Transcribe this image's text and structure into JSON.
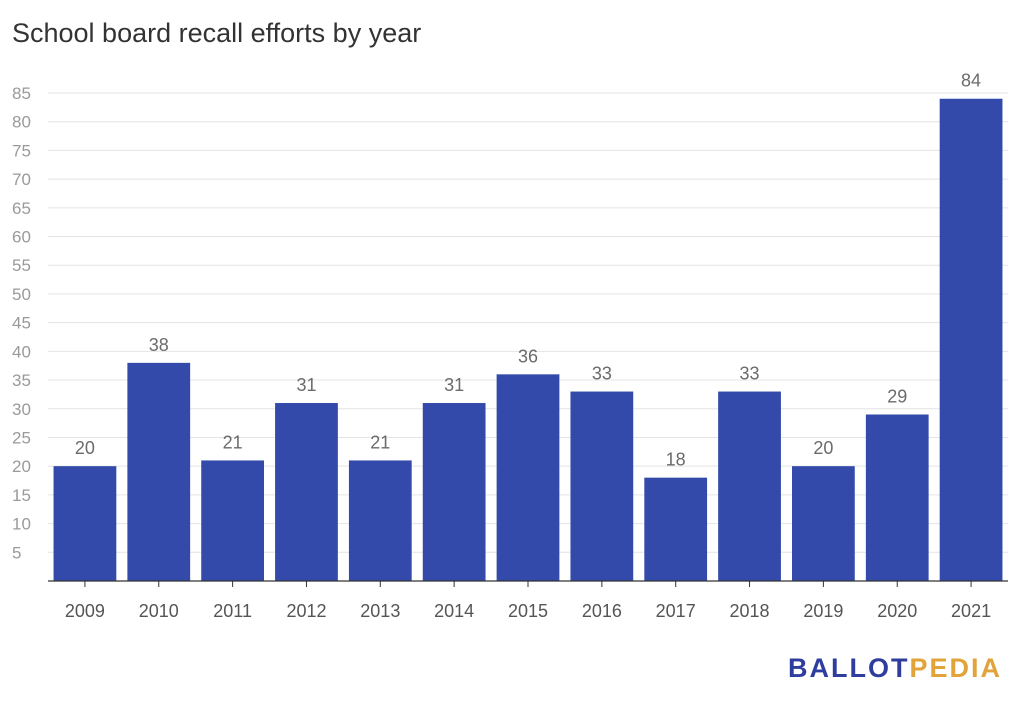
{
  "chart_data": {
    "type": "bar",
    "title": "School board recall efforts by year",
    "categories": [
      "2009",
      "2010",
      "2011",
      "2012",
      "2013",
      "2014",
      "2015",
      "2016",
      "2017",
      "2018",
      "2019",
      "2020",
      "2021"
    ],
    "values": [
      20,
      38,
      21,
      31,
      21,
      31,
      36,
      33,
      18,
      33,
      20,
      29,
      84
    ],
    "ylim": [
      0,
      85
    ],
    "yticks": [
      5,
      10,
      15,
      20,
      25,
      30,
      35,
      40,
      45,
      50,
      55,
      60,
      65,
      70,
      75,
      80,
      85
    ],
    "grid": true,
    "xlabel": "",
    "ylabel": "",
    "bar_color": "#334aab",
    "data_labels": true
  },
  "logo": {
    "part1": "BALLOT",
    "part2": "PEDIA"
  }
}
